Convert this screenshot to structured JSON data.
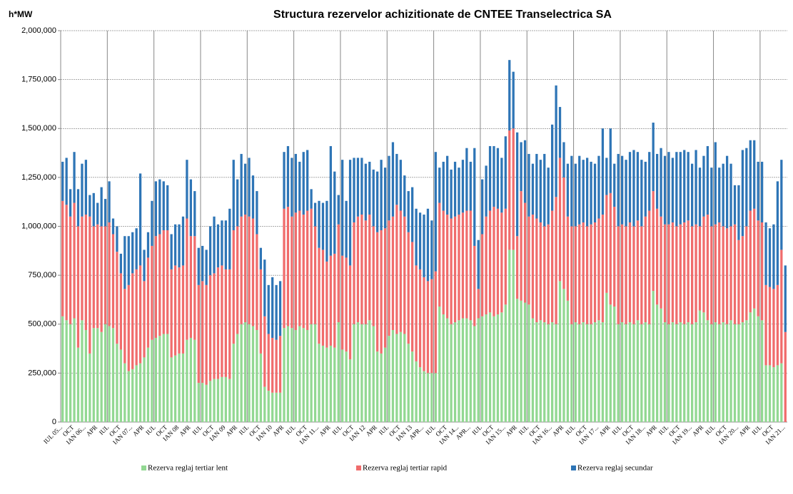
{
  "chart_data": {
    "type": "stacked_bar",
    "title": "Structura rezervelor achizitionate de CNTEE Transelectrica SA",
    "y_label": "h*MW",
    "categories": [
      "IUL 05...",
      null,
      null,
      "OCT",
      null,
      null,
      "IAN 06...",
      null,
      null,
      "APR",
      null,
      null,
      "IUL",
      null,
      null,
      "OCT",
      null,
      null,
      "IAN 07...",
      null,
      null,
      "APR",
      null,
      null,
      "IUL",
      null,
      null,
      "OCT",
      null,
      null,
      "IAN 08",
      null,
      null,
      "APR",
      null,
      null,
      "IUL",
      null,
      null,
      "OCT",
      null,
      null,
      "IAN 09",
      null,
      null,
      "APR",
      null,
      null,
      "IUL",
      null,
      null,
      "OCT",
      null,
      null,
      "IAN 10",
      null,
      null,
      "APR",
      null,
      null,
      "IUL",
      null,
      null,
      "OCT",
      null,
      null,
      "IAN 11...",
      null,
      null,
      "APR",
      null,
      null,
      "IUL",
      null,
      null,
      "OCT",
      null,
      null,
      "IAN 12",
      null,
      null,
      "APR",
      null,
      null,
      "IUL",
      null,
      null,
      "OCT",
      null,
      null,
      "IAN 13",
      null,
      null,
      "APR...",
      null,
      null,
      "IUL",
      null,
      null,
      "OCT",
      null,
      null,
      "IAN 14...",
      null,
      null,
      "APR...",
      null,
      null,
      "IUL",
      null,
      null,
      "OCT",
      null,
      null,
      "IAN 15...",
      null,
      null,
      "APR",
      null,
      null,
      "IUL",
      null,
      null,
      "OCT",
      null,
      null,
      "IAN 16...",
      null,
      null,
      "APR",
      null,
      null,
      "IUL",
      null,
      null,
      "OCT",
      null,
      null,
      "IAN 17...",
      null,
      null,
      "APR",
      null,
      null,
      "IUL",
      null,
      null,
      "OCT",
      null,
      null,
      "IAN 18...",
      null,
      null,
      "APR",
      null,
      null,
      "IUL",
      null,
      null,
      "OCT",
      null,
      null,
      "IAN 19...",
      null,
      null,
      "APR",
      null,
      null,
      "IUL",
      null,
      null,
      "OCT",
      null,
      null,
      "IAN 20...",
      null,
      null,
      "APR",
      null,
      null,
      "IUL",
      null,
      null,
      "OCT",
      null,
      null,
      "IAN 21..."
    ],
    "series": [
      {
        "name": "Rezerva reglaj tertiar lent",
        "color": "#92d892",
        "values": [
          540000,
          520000,
          500000,
          530000,
          380000,
          520000,
          470000,
          350000,
          480000,
          480000,
          460000,
          500000,
          490000,
          480000,
          400000,
          370000,
          300000,
          260000,
          270000,
          290000,
          300000,
          330000,
          380000,
          420000,
          430000,
          440000,
          450000,
          450000,
          330000,
          340000,
          350000,
          350000,
          420000,
          430000,
          420000,
          200000,
          200000,
          190000,
          210000,
          220000,
          220000,
          230000,
          230000,
          220000,
          400000,
          450000,
          500000,
          510000,
          500000,
          490000,
          470000,
          350000,
          180000,
          160000,
          150000,
          150000,
          150000,
          480000,
          490000,
          480000,
          470000,
          490000,
          480000,
          470000,
          500000,
          500000,
          400000,
          390000,
          380000,
          390000,
          380000,
          510000,
          370000,
          360000,
          320000,
          500000,
          510000,
          500000,
          500000,
          520000,
          490000,
          360000,
          350000,
          380000,
          440000,
          470000,
          450000,
          460000,
          450000,
          400000,
          360000,
          310000,
          280000,
          260000,
          250000,
          250000,
          250000,
          590000,
          550000,
          530000,
          500000,
          510000,
          520000,
          530000,
          530000,
          520000,
          490000,
          530000,
          540000,
          550000,
          560000,
          540000,
          550000,
          560000,
          600000,
          880000,
          880000,
          630000,
          620000,
          610000,
          600000,
          530000,
          510000,
          520000,
          510000,
          500000,
          510000,
          500000,
          720000,
          680000,
          620000,
          500000,
          510000,
          500000,
          510000,
          500000,
          500000,
          510000,
          520000,
          510000,
          660000,
          600000,
          590000,
          500000,
          510000,
          500000,
          510000,
          500000,
          520000,
          500000,
          510000,
          500000,
          670000,
          600000,
          580000,
          510000,
          500000,
          510000,
          500000,
          510000,
          500000,
          510000,
          500000,
          510000,
          570000,
          560000,
          520000,
          500000,
          510000,
          500000,
          510000,
          500000,
          520000,
          500000,
          500000,
          510000,
          520000,
          560000,
          580000,
          540000,
          520000,
          290000,
          290000,
          280000,
          290000,
          300000,
          0
        ]
      },
      {
        "name": "Rezerva reglaj tertiar rapid",
        "color": "#f06c6c",
        "values": [
          590000,
          590000,
          550000,
          590000,
          620000,
          530000,
          590000,
          700000,
          520000,
          530000,
          540000,
          500000,
          530000,
          480000,
          470000,
          390000,
          380000,
          440000,
          490000,
          490000,
          500000,
          390000,
          460000,
          480000,
          520000,
          520000,
          530000,
          530000,
          450000,
          460000,
          440000,
          450000,
          620000,
          520000,
          530000,
          500000,
          520000,
          510000,
          540000,
          540000,
          570000,
          570000,
          550000,
          560000,
          580000,
          550000,
          550000,
          550000,
          550000,
          550000,
          490000,
          430000,
          360000,
          290000,
          280000,
          270000,
          290000,
          610000,
          610000,
          570000,
          600000,
          590000,
          580000,
          610000,
          590000,
          500000,
          490000,
          490000,
          440000,
          460000,
          480000,
          500000,
          480000,
          480000,
          480000,
          520000,
          540000,
          560000,
          530000,
          540000,
          510000,
          610000,
          630000,
          610000,
          590000,
          580000,
          660000,
          620000,
          600000,
          570000,
          560000,
          490000,
          500000,
          480000,
          470000,
          480000,
          520000,
          530000,
          530000,
          530000,
          540000,
          540000,
          540000,
          540000,
          550000,
          560000,
          410000,
          150000,
          420000,
          500000,
          520000,
          560000,
          540000,
          510000,
          490000,
          610000,
          620000,
          320000,
          560000,
          510000,
          450000,
          530000,
          530000,
          500000,
          490000,
          510000,
          570000,
          650000,
          630000,
          570000,
          430000,
          500000,
          490000,
          510000,
          510000,
          500000,
          510000,
          510000,
          520000,
          550000,
          500000,
          570000,
          510000,
          500000,
          500000,
          500000,
          510000,
          500000,
          510000,
          500000,
          540000,
          580000,
          510000,
          490000,
          470000,
          500000,
          510000,
          510000,
          500000,
          500000,
          520000,
          520000,
          500000,
          500000,
          430000,
          490000,
          540000,
          500000,
          500000,
          520000,
          490000,
          490000,
          480000,
          510000,
          430000,
          440000,
          480000,
          520000,
          510000,
          490000,
          500000,
          410000,
          400000,
          400000,
          410000,
          580000,
          460000
        ]
      },
      {
        "name": "Rezerva reglaj secundar",
        "color": "#2e75b6",
        "values": [
          200000,
          240000,
          140000,
          260000,
          190000,
          270000,
          280000,
          110000,
          170000,
          110000,
          200000,
          140000,
          210000,
          80000,
          130000,
          100000,
          270000,
          250000,
          210000,
          210000,
          470000,
          160000,
          130000,
          230000,
          280000,
          280000,
          250000,
          230000,
          180000,
          210000,
          220000,
          250000,
          300000,
          290000,
          230000,
          190000,
          180000,
          180000,
          250000,
          290000,
          220000,
          230000,
          250000,
          310000,
          360000,
          240000,
          320000,
          260000,
          300000,
          220000,
          220000,
          110000,
          290000,
          250000,
          310000,
          280000,
          280000,
          290000,
          310000,
          300000,
          300000,
          250000,
          320000,
          310000,
          100000,
          120000,
          240000,
          240000,
          310000,
          560000,
          420000,
          150000,
          490000,
          290000,
          540000,
          330000,
          300000,
          290000,
          290000,
          270000,
          290000,
          310000,
          360000,
          310000,
          330000,
          380000,
          260000,
          260000,
          210000,
          210000,
          280000,
          290000,
          290000,
          320000,
          370000,
          300000,
          610000,
          180000,
          250000,
          300000,
          250000,
          280000,
          240000,
          270000,
          320000,
          250000,
          500000,
          250000,
          280000,
          260000,
          330000,
          310000,
          310000,
          280000,
          370000,
          360000,
          290000,
          530000,
          250000,
          320000,
          320000,
          260000,
          330000,
          320000,
          370000,
          290000,
          440000,
          570000,
          260000,
          180000,
          270000,
          360000,
          320000,
          350000,
          320000,
          350000,
          320000,
          300000,
          320000,
          440000,
          190000,
          330000,
          220000,
          370000,
          350000,
          340000,
          360000,
          390000,
          350000,
          340000,
          280000,
          300000,
          350000,
          280000,
          350000,
          350000,
          370000,
          330000,
          380000,
          370000,
          370000,
          350000,
          320000,
          380000,
          300000,
          310000,
          350000,
          300000,
          420000,
          280000,
          320000,
          370000,
          320000,
          200000,
          280000,
          440000,
          400000,
          360000,
          350000,
          300000,
          310000,
          320000,
          300000,
          330000,
          530000,
          460000,
          340000
        ]
      }
    ],
    "ylim": [
      0,
      2000000
    ],
    "yticks": [
      0,
      {
        "value": 250000,
        "label": "250,000"
      },
      {
        "value": 500000,
        "label": "500,000"
      },
      {
        "value": 750000,
        "label": "750,000"
      },
      {
        "value": 1000000,
        "label": "1,000,000"
      },
      {
        "value": 1250000,
        "label": "1,250,000"
      },
      {
        "value": 1500000,
        "label": "1,500,000"
      },
      {
        "value": 1750000,
        "label": "1,750,000"
      },
      {
        "value": 2000000,
        "label": "2,000,000"
      }
    ],
    "grid": true,
    "legend": "bottom"
  }
}
